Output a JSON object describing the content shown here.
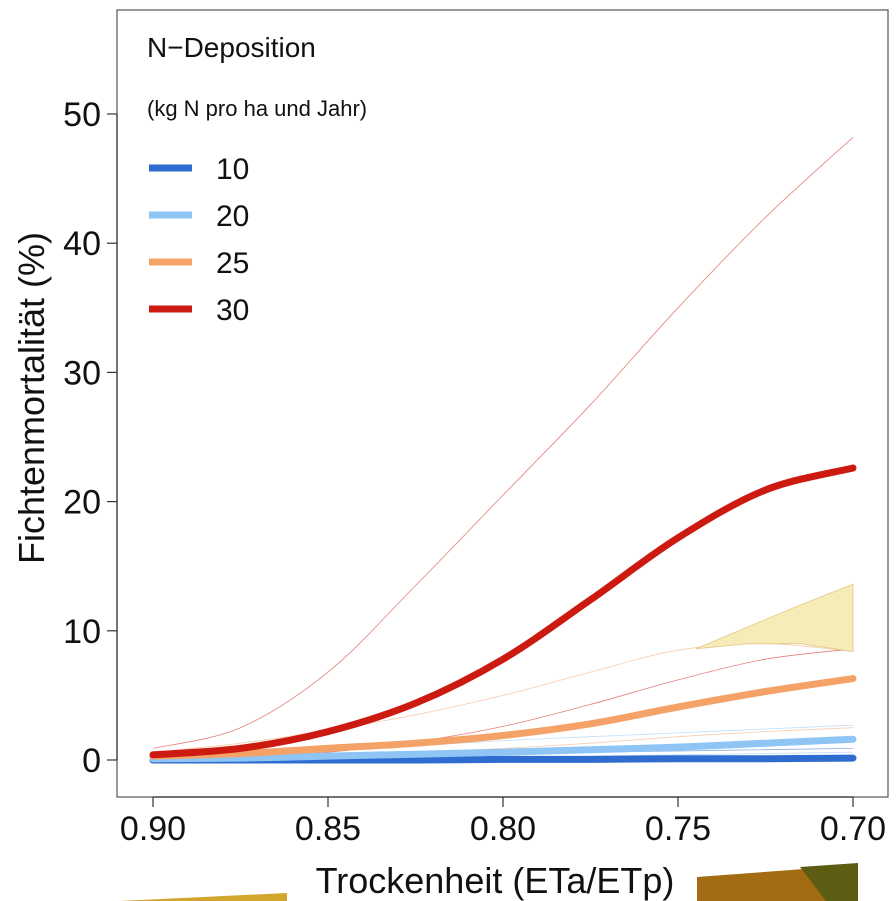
{
  "chart_data": {
    "type": "line",
    "xlabel": "Trockenheit (ETa/ETp)",
    "ylabel": "Fichtenmortalität (%)",
    "xlim": [
      0.9,
      0.7
    ],
    "ylim": [
      0,
      55
    ],
    "x_reversed": true,
    "x_ticks": [
      "0.90",
      "0.85",
      "0.80",
      "0.75",
      "0.70"
    ],
    "y_ticks": [
      "0",
      "10",
      "20",
      "30",
      "40",
      "50"
    ],
    "legend": {
      "title": "N−Deposition",
      "subtitle": "(kg N pro ha und Jahr)",
      "placement": "top-left"
    },
    "x": [
      0.9,
      0.875,
      0.85,
      0.825,
      0.8,
      0.775,
      0.75,
      0.725,
      0.7
    ],
    "series": [
      {
        "name": "10",
        "color": "#2f6ccf",
        "values": [
          0.0,
          0.0,
          0.0,
          0.0,
          0.05,
          0.05,
          0.1,
          0.1,
          0.15
        ],
        "lower": [
          0.0,
          0.0,
          0.0,
          0.0,
          0.0,
          0.0,
          0.0,
          0.0,
          0.0
        ],
        "upper": [
          0.1,
          0.2,
          0.3,
          0.4,
          0.5,
          0.6,
          0.7,
          0.8,
          0.9
        ]
      },
      {
        "name": "20",
        "color": "#8ec5f5",
        "values": [
          0.1,
          0.15,
          0.3,
          0.45,
          0.6,
          0.8,
          1.0,
          1.3,
          1.6
        ],
        "lower": [
          0.0,
          0.0,
          0.05,
          0.1,
          0.2,
          0.3,
          0.4,
          0.5,
          0.6
        ],
        "upper": [
          0.3,
          0.5,
          0.8,
          1.1,
          1.5,
          1.8,
          2.1,
          2.4,
          2.7
        ]
      },
      {
        "name": "25",
        "color": "#f4a267",
        "values": [
          0.3,
          0.5,
          0.9,
          1.3,
          1.9,
          2.8,
          4.1,
          5.3,
          6.3
        ],
        "lower": [
          0.1,
          0.2,
          0.4,
          0.6,
          0.9,
          1.3,
          1.8,
          2.2,
          2.5
        ],
        "upper": [
          0.6,
          1.3,
          2.3,
          3.5,
          5.0,
          6.8,
          8.5,
          9.0,
          8.4
        ]
      },
      {
        "name": "30",
        "color": "#cc1a10",
        "values": [
          0.4,
          0.9,
          2.2,
          4.4,
          7.8,
          12.4,
          17.2,
          20.9,
          22.6
        ],
        "lower": [
          0.1,
          0.3,
          0.6,
          1.4,
          2.6,
          4.3,
          6.2,
          7.8,
          8.6
        ],
        "upper": [
          0.9,
          2.5,
          6.8,
          13.5,
          20.5,
          27.5,
          35.0,
          42.0,
          48.2
        ]
      }
    ],
    "highlight_band": {
      "color": "#f6ecb8",
      "x": [
        0.745,
        0.73,
        0.715,
        0.7
      ],
      "lower": [
        8.6,
        9.0,
        9.0,
        8.4
      ],
      "upper": [
        8.6,
        10.3,
        12.0,
        13.6
      ]
    },
    "grid": false
  },
  "decor": {
    "left_swatch_color": "#d2a52e",
    "right_swatch_color": "#a36b12",
    "right_swatch_dark": "#5c5c12"
  }
}
